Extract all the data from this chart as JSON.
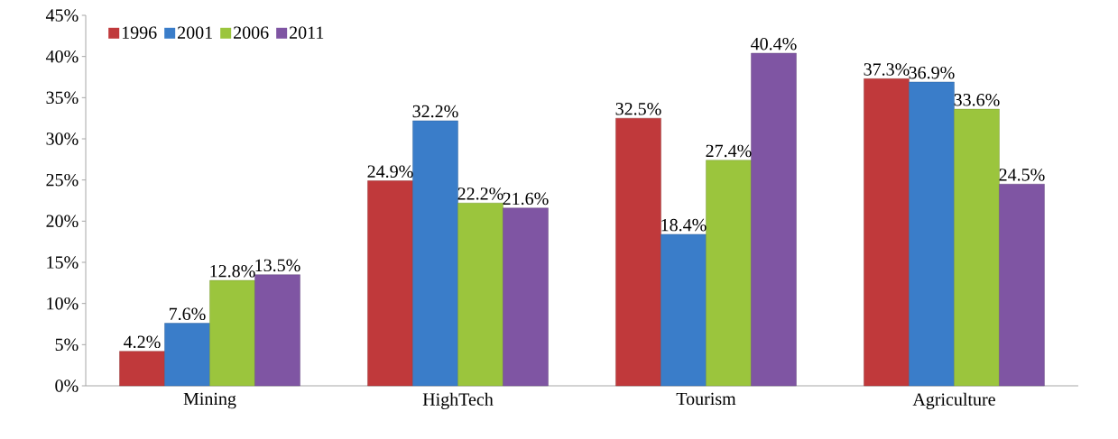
{
  "chart_data": {
    "type": "bar",
    "categories": [
      "Mining",
      "HighTech",
      "Tourism",
      "Agriculture"
    ],
    "series": [
      {
        "name": "1996",
        "color": "#c0393b",
        "values": [
          4.2,
          24.9,
          32.5,
          37.3
        ],
        "value_labels": [
          "4.2%",
          "24.9%",
          "32.5%",
          "37.3%"
        ]
      },
      {
        "name": "2001",
        "color": "#3a7dc9",
        "values": [
          7.6,
          32.2,
          18.4,
          36.9
        ],
        "value_labels": [
          "7.6%",
          "32.2%",
          "18.4%",
          "36.9%"
        ]
      },
      {
        "name": "2006",
        "color": "#9bc53d",
        "values": [
          12.8,
          22.2,
          27.4,
          33.6
        ],
        "value_labels": [
          "12.8%",
          "22.2%",
          "27.4%",
          "33.6%"
        ]
      },
      {
        "name": "2011",
        "color": "#7f55a3",
        "values": [
          13.5,
          21.6,
          40.4,
          24.5
        ],
        "value_labels": [
          "13.5%",
          "21.6%",
          "40.4%",
          "24.5%"
        ]
      }
    ],
    "ylim": [
      0,
      45
    ],
    "yticks": [
      {
        "value": 0,
        "label": "0%"
      },
      {
        "value": 5,
        "label": "5%"
      },
      {
        "value": 10,
        "label": "10%"
      },
      {
        "value": 15,
        "label": "15%"
      },
      {
        "value": 20,
        "label": "20%"
      },
      {
        "value": 25,
        "label": "25%"
      },
      {
        "value": 30,
        "label": "30%"
      },
      {
        "value": 35,
        "label": "35%"
      },
      {
        "value": 40,
        "label": "40%"
      },
      {
        "value": 45,
        "label": "45%"
      }
    ],
    "grid": false,
    "legend": "top left"
  }
}
